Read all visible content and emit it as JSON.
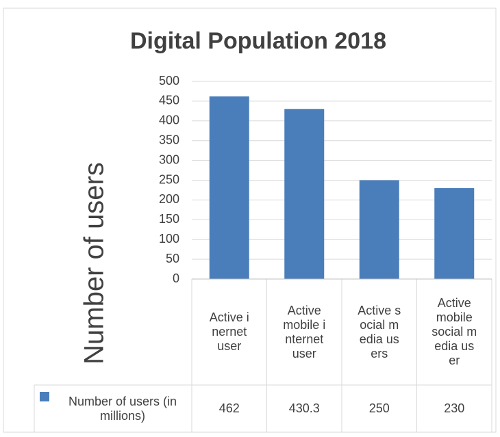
{
  "chart_data": {
    "type": "bar",
    "title": "Digital Population 2018",
    "y_label": "Number of users",
    "categories": [
      "Active inernet user",
      "Active mobile internet user",
      "Active social media users",
      "Active mobile social media user"
    ],
    "series": [
      {
        "name": "Number of users (in millions)",
        "color": "#4a7ebb",
        "values": [
          462,
          430.3,
          250,
          230
        ]
      }
    ],
    "ylim": [
      0,
      500
    ],
    "yticks": [
      0,
      50,
      100,
      150,
      200,
      250,
      300,
      350,
      400,
      450,
      500
    ],
    "grid": true,
    "data_table": true
  }
}
